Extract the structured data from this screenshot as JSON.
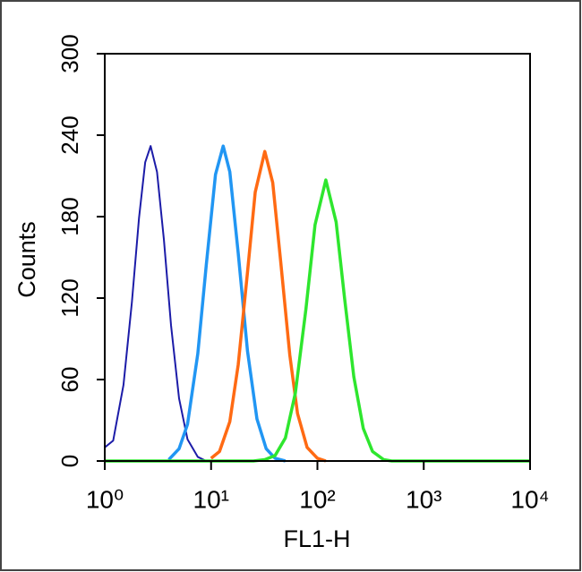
{
  "chart_data": {
    "type": "line",
    "x_label": "FL1-H",
    "y_label": "Counts",
    "xscale": "log",
    "xlim": [
      1,
      10000
    ],
    "xticks": [
      {
        "value": 1,
        "label": "10⁰"
      },
      {
        "value": 10,
        "label": "10¹"
      },
      {
        "value": 100,
        "label": "10²"
      },
      {
        "value": 1000,
        "label": "10³"
      },
      {
        "value": 10000,
        "label": "10⁴"
      }
    ],
    "ylim": [
      0,
      300
    ],
    "yticks": [
      0,
      60,
      120,
      180,
      240,
      300
    ],
    "series": [
      {
        "color": "#1c1ca8",
        "x": [
          1,
          1.2,
          1.5,
          1.8,
          2.1,
          2.4,
          2.7,
          3.1,
          3.6,
          4.2,
          5,
          6,
          7.5,
          9
        ],
        "values": [
          10,
          15,
          56,
          117,
          179,
          220,
          232,
          213,
          163,
          100,
          46,
          16,
          3,
          0
        ]
      },
      {
        "color": "#2196f3",
        "x": [
          4,
          5,
          6,
          7.5,
          9,
          11,
          13,
          15,
          18,
          22,
          27,
          33,
          40,
          50
        ],
        "values": [
          1,
          9,
          27,
          79,
          144,
          211,
          232,
          213,
          153,
          81,
          31,
          9,
          2,
          0
        ]
      },
      {
        "color": "#ff6a13",
        "x": [
          10,
          12,
          15,
          18,
          22,
          26,
          32,
          38,
          45,
          55,
          65,
          80,
          100,
          120
        ],
        "values": [
          2,
          7,
          29,
          71,
          139,
          198,
          228,
          205,
          148,
          78,
          35,
          10,
          2,
          0
        ]
      },
      {
        "color": "#2ee62e",
        "x": [
          1,
          25,
          32,
          40,
          50,
          62,
          78,
          95,
          120,
          150,
          180,
          220,
          270,
          330,
          420,
          500,
          10000
        ],
        "values": [
          0,
          0,
          1,
          4,
          17,
          50,
          112,
          174,
          207,
          176,
          120,
          62,
          24,
          7,
          1,
          0,
          0
        ]
      }
    ]
  }
}
